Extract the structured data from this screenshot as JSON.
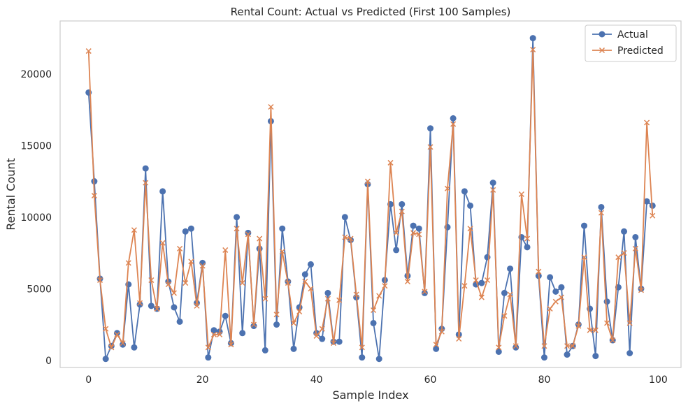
{
  "chart_data": {
    "type": "line",
    "title": "Rental Count: Actual vs Predicted (First 100 Samples)",
    "xlabel": "Sample Index",
    "ylabel": "Rental Count",
    "xlim": [
      -5,
      104
    ],
    "ylim": [
      -500,
      23700
    ],
    "xticks": [
      0,
      20,
      40,
      60,
      80,
      100
    ],
    "yticks": [
      0,
      5000,
      10000,
      15000,
      20000
    ],
    "grid": false,
    "legend_position": "top-right",
    "series": [
      {
        "name": "Actual",
        "color": "#4c72b0",
        "marker": "circle",
        "values": [
          18700,
          12500,
          5700,
          100,
          1000,
          1900,
          1100,
          5300,
          900,
          3900,
          13400,
          3800,
          3600,
          11800,
          5500,
          3700,
          2700,
          9000,
          9200,
          4000,
          6800,
          200,
          2100,
          2000,
          3100,
          1200,
          10000,
          1900,
          8900,
          2400,
          7800,
          700,
          16700,
          2500,
          9200,
          5500,
          800,
          3700,
          6000,
          6700,
          1900,
          1500,
          4700,
          1300,
          1300,
          10000,
          8400,
          4400,
          200,
          12300,
          2600,
          100,
          5600,
          10900,
          7700,
          10900,
          5900,
          9400,
          9200,
          4700,
          16200,
          800,
          2200,
          9300,
          16900,
          1800,
          11800,
          10800,
          5300,
          5400,
          7200,
          12400,
          600,
          4700,
          6400,
          900,
          8600,
          7900,
          22500,
          5900,
          200,
          5800,
          4800,
          5100,
          400,
          1000,
          2500,
          9400,
          3600,
          300,
          10700,
          4100,
          1400,
          5100,
          9000,
          500,
          8600,
          5000,
          11100,
          10800
        ]
      },
      {
        "name": "Predicted",
        "color": "#dd8452",
        "marker": "x",
        "values": [
          21600,
          11500,
          5600,
          2200,
          900,
          1800,
          1200,
          6800,
          9100,
          4000,
          12400,
          5600,
          3600,
          8200,
          5300,
          4700,
          7800,
          5400,
          6900,
          3800,
          6600,
          900,
          1800,
          1800,
          7700,
          1100,
          9200,
          5400,
          8800,
          2500,
          8500,
          4300,
          17700,
          3200,
          7600,
          5400,
          2600,
          3400,
          5500,
          5000,
          1700,
          2200,
          4300,
          1200,
          4200,
          8600,
          8500,
          4600,
          900,
          12500,
          3500,
          4500,
          5200,
          13800,
          8900,
          10400,
          5500,
          8900,
          8800,
          4800,
          14900,
          1100,
          2000,
          12000,
          16500,
          1500,
          5200,
          9200,
          5600,
          4400,
          5600,
          11900,
          900,
          3100,
          4600,
          1000,
          11600,
          8500,
          21700,
          6200,
          1000,
          3600,
          4100,
          4400,
          1000,
          1000,
          2400,
          7200,
          2100,
          2100,
          10300,
          2600,
          1400,
          7200,
          7500,
          2600,
          7800,
          4900,
          16600,
          10100
        ]
      }
    ]
  }
}
